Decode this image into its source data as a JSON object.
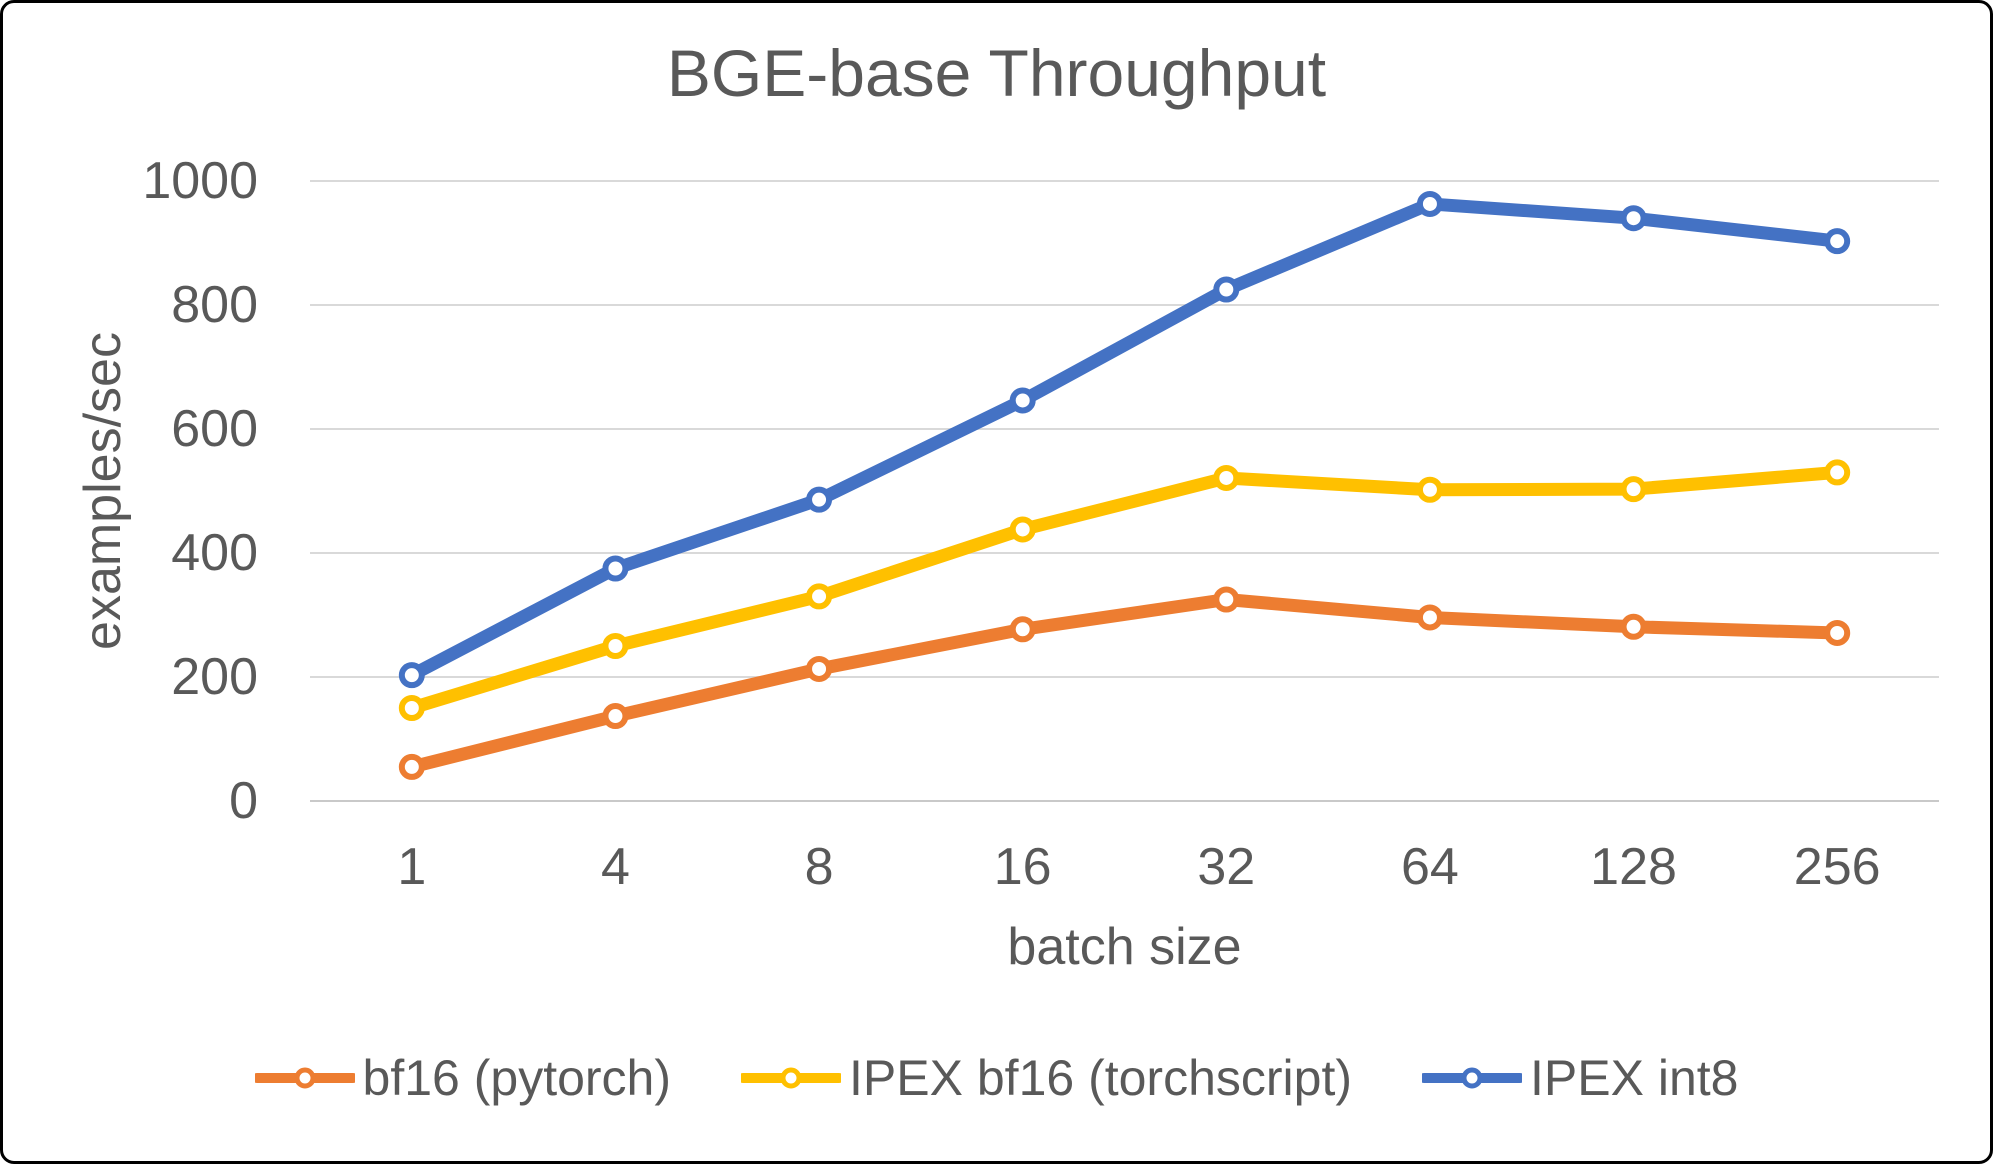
{
  "frame": {
    "background": "#FFFFFF",
    "border_color": "#000000"
  },
  "chart_data": {
    "type": "line",
    "title": "BGE-base Throughput",
    "xlabel": "batch size",
    "ylabel": "examples/sec",
    "categories": [
      "1",
      "4",
      "8",
      "16",
      "32",
      "64",
      "128",
      "256"
    ],
    "series": [
      {
        "name": "bf16 (pytorch)",
        "color": "#ED7D31",
        "values": [
          55,
          137,
          213,
          277,
          325,
          296,
          281,
          271
        ]
      },
      {
        "name": "IPEX bf16 (torchscript)",
        "color": "#FFC000",
        "values": [
          150,
          250,
          330,
          438,
          521,
          502,
          503,
          530
        ]
      },
      {
        "name": "IPEX int8",
        "color": "#4472C4",
        "values": [
          203,
          375,
          486,
          646,
          825,
          963,
          940,
          903
        ]
      }
    ],
    "ylim": [
      0,
      1000
    ],
    "yticks": [
      0,
      200,
      400,
      600,
      800,
      1000
    ],
    "grid": true,
    "legend_position": "bottom",
    "marker": "open-circle",
    "text_color": "#595959",
    "grid_color": "#D9D9D9",
    "zero_line_color": "#C9C9C9"
  }
}
